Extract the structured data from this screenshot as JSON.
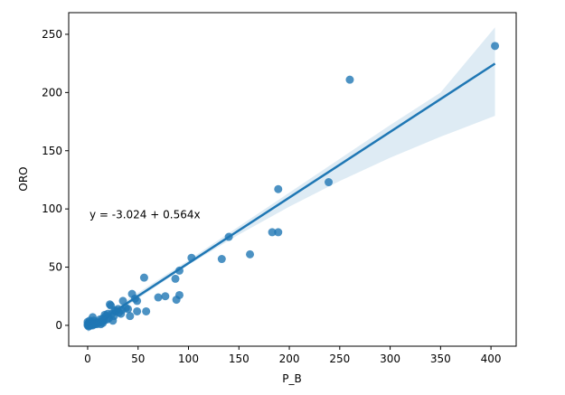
{
  "chart_data": {
    "type": "scatter",
    "title": "",
    "xlabel": "P_B",
    "ylabel": "ORO",
    "xlim": [
      -18.8,
      425
    ],
    "ylim": [
      -17.9,
      268.6
    ],
    "xticks": [
      0,
      50,
      100,
      150,
      200,
      250,
      300,
      350,
      400
    ],
    "yticks": [
      0,
      50,
      100,
      150,
      200,
      250
    ],
    "grid": false,
    "color": "#1f77b4",
    "annotation": {
      "text": "y = -3.024 + 0.564x",
      "x": 0,
      "y": 95
    },
    "regression": {
      "intercept": -3.024,
      "slope": 0.564,
      "x_range": [
        0,
        404
      ]
    },
    "ci_band": {
      "x": [
        0,
        50,
        100,
        150,
        200,
        250,
        300,
        350,
        404
      ],
      "lower": [
        -6,
        23,
        52,
        78,
        102,
        124,
        144,
        162,
        180
      ],
      "upper": [
        0,
        28,
        56,
        85,
        114,
        143,
        172,
        200,
        256
      ]
    },
    "points": [
      [
        404,
        240
      ],
      [
        260,
        211
      ],
      [
        239,
        123
      ],
      [
        189,
        117
      ],
      [
        183,
        80
      ],
      [
        189,
        80
      ],
      [
        140,
        76
      ],
      [
        161,
        61
      ],
      [
        133,
        57
      ],
      [
        103,
        58
      ],
      [
        91,
        47
      ],
      [
        87,
        40
      ],
      [
        56,
        41
      ],
      [
        91,
        26
      ],
      [
        88,
        22
      ],
      [
        77,
        25
      ],
      [
        70,
        24
      ],
      [
        58,
        12
      ],
      [
        49,
        12
      ],
      [
        49,
        21
      ],
      [
        47,
        23
      ],
      [
        44,
        27
      ],
      [
        42,
        8
      ],
      [
        35,
        21
      ],
      [
        22,
        18
      ],
      [
        25,
        4
      ],
      [
        23,
        17
      ],
      [
        30,
        14
      ],
      [
        33,
        10
      ],
      [
        28,
        12
      ],
      [
        38,
        15
      ],
      [
        40,
        14
      ],
      [
        20,
        10
      ],
      [
        18,
        8
      ],
      [
        15,
        6
      ],
      [
        12,
        5
      ],
      [
        10,
        3
      ],
      [
        8,
        2
      ],
      [
        6,
        1
      ],
      [
        5,
        7
      ],
      [
        4,
        3
      ],
      [
        3,
        0
      ],
      [
        2,
        1
      ],
      [
        1,
        2
      ],
      [
        0,
        0
      ],
      [
        0,
        3
      ],
      [
        1,
        -1
      ],
      [
        2,
        4
      ],
      [
        3,
        2
      ],
      [
        6,
        4
      ],
      [
        9,
        1
      ],
      [
        11,
        2
      ],
      [
        14,
        3
      ],
      [
        16,
        4
      ],
      [
        17,
        9
      ],
      [
        19,
        5
      ],
      [
        21,
        6
      ],
      [
        24,
        10
      ],
      [
        26,
        8
      ],
      [
        27,
        13
      ],
      [
        31,
        11
      ],
      [
        34,
        13
      ],
      [
        0,
        1
      ],
      [
        1,
        0
      ],
      [
        2,
        0
      ],
      [
        4,
        1
      ],
      [
        5,
        0
      ],
      [
        7,
        1
      ],
      [
        13,
        1
      ],
      [
        15,
        2
      ]
    ]
  }
}
